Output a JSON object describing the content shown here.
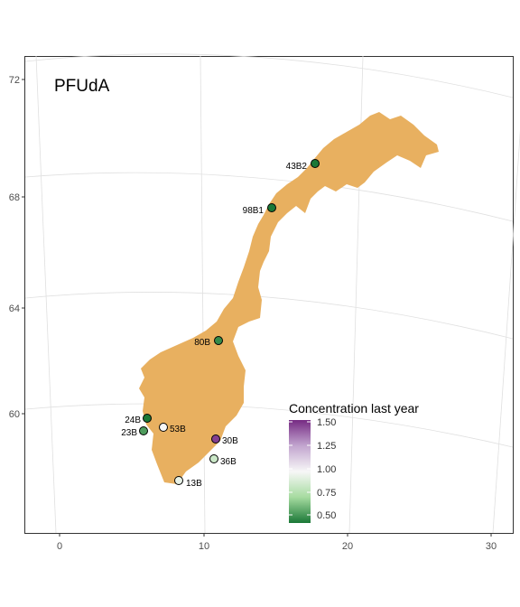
{
  "title": "PFUdA",
  "x_ticks": [
    "0",
    "10",
    "20",
    "30"
  ],
  "y_ticks": [
    "72",
    "68",
    "64",
    "60"
  ],
  "legend": {
    "title": "Concentration last year",
    "ticks": [
      "1.50",
      "1.25",
      "1.00",
      "0.75",
      "0.50"
    ],
    "colors": [
      "#762a83",
      "#c2a5cf",
      "#f7f7f7",
      "#a6dba0",
      "#1b7837"
    ]
  },
  "land_color": "#e8b060",
  "stations": [
    {
      "label": "43B2",
      "value": 0.45
    },
    {
      "label": "98B1",
      "value": 0.45
    },
    {
      "label": "80B",
      "value": 0.5
    },
    {
      "label": "24B",
      "value": 0.45
    },
    {
      "label": "23B",
      "value": 0.55
    },
    {
      "label": "53B",
      "value": 1.0
    },
    {
      "label": "30B",
      "value": 1.5
    },
    {
      "label": "36B",
      "value": 0.85
    },
    {
      "label": "13B",
      "value": 0.95
    }
  ]
}
